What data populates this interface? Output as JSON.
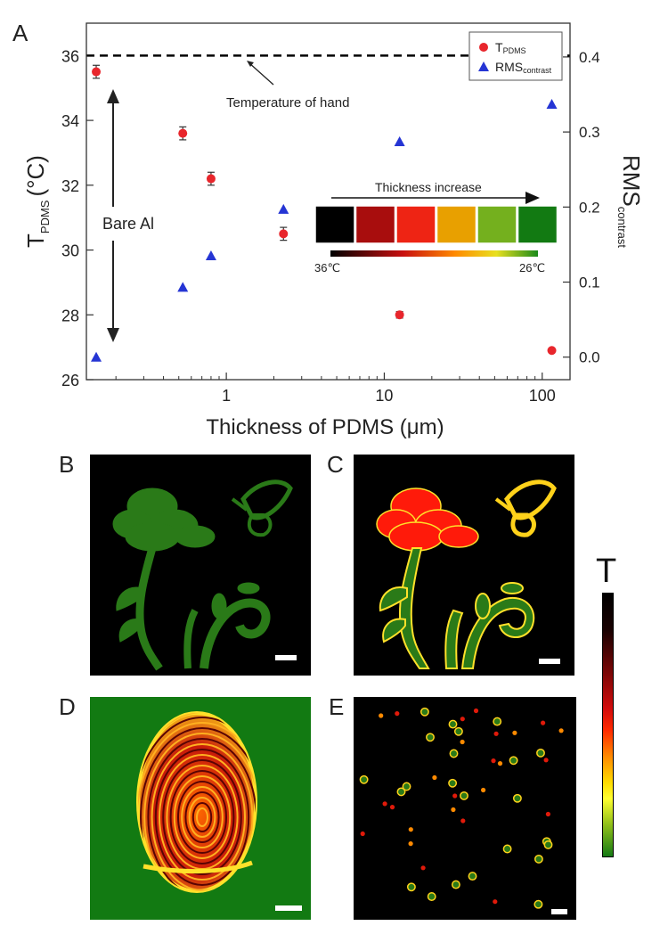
{
  "panel_labels": {
    "a": "A",
    "b": "B",
    "c": "C",
    "d": "D",
    "e": "E"
  },
  "chart_data": {
    "type": "scatter",
    "xscale": "log",
    "xlim": [
      0.13,
      150
    ],
    "ylim": [
      26,
      37
    ],
    "y2lim": [
      -0.03,
      0.445
    ],
    "xlabel": "Thickness of PDMS (μm)",
    "ylabel": {
      "main": "T",
      "sub": "PDMS",
      "unit": "(°C)"
    },
    "y2label": {
      "main": "RMS",
      "sub": "contrast"
    },
    "x_ticks": [
      {
        "value": 1,
        "label": "1"
      },
      {
        "value": 10,
        "label": "10"
      },
      {
        "value": 100,
        "label": "100"
      }
    ],
    "y_ticks": [
      {
        "value": 26,
        "label": "26"
      },
      {
        "value": 28,
        "label": "28"
      },
      {
        "value": 30,
        "label": "30"
      },
      {
        "value": 32,
        "label": "32"
      },
      {
        "value": 34,
        "label": "34"
      },
      {
        "value": 36,
        "label": "36"
      }
    ],
    "y2_ticks": [
      {
        "value": 0.0,
        "label": "0.0"
      },
      {
        "value": 0.1,
        "label": "0.1"
      },
      {
        "value": 0.2,
        "label": "0.2"
      },
      {
        "value": 0.3,
        "label": "0.3"
      },
      {
        "value": 0.4,
        "label": "0.4"
      }
    ],
    "legend": {
      "position": "top-right",
      "entries": [
        {
          "main": "T",
          "sub": "PDMS",
          "marker": "circle",
          "color": "#e8262c"
        },
        {
          "main": "RMS",
          "sub": "contrast",
          "marker": "triangle",
          "color": "#2535d4"
        }
      ]
    },
    "series": [
      {
        "axis": "left",
        "marker": "circle",
        "color": "#e8262c",
        "points": [
          {
            "x": 0.15,
            "y": 35.5,
            "err": 0.2
          },
          {
            "x": 0.53,
            "y": 33.6,
            "err": 0.2
          },
          {
            "x": 0.8,
            "y": 32.2,
            "err": 0.2
          },
          {
            "x": 2.3,
            "y": 30.5,
            "err": 0.2
          },
          {
            "x": 12.5,
            "y": 28.0,
            "err": 0.1
          },
          {
            "x": 115,
            "y": 26.9,
            "err": 0
          }
        ]
      },
      {
        "axis": "right",
        "marker": "triangle",
        "color": "#2535d4",
        "points": [
          {
            "x": 0.15,
            "y": 0.0
          },
          {
            "x": 0.53,
            "y": 0.093
          },
          {
            "x": 0.8,
            "y": 0.135
          },
          {
            "x": 2.3,
            "y": 0.197
          },
          {
            "x": 12.5,
            "y": 0.287
          },
          {
            "x": 115,
            "y": 0.337
          }
        ]
      }
    ],
    "reference_line": {
      "y": 36,
      "style": "dashed",
      "color": "#000000"
    },
    "annotations": {
      "hand": "Temperature of hand",
      "bare": "Bare Al",
      "thickness": "Thickness increase"
    },
    "swatch_colors": [
      "#000000",
      "#a80d0d",
      "#ee2414",
      "#e8a000",
      "#74b01e",
      "#127a12"
    ],
    "colorbar_labels": {
      "high": "36℃",
      "low": "26℃"
    }
  },
  "colorbar": {
    "label": "T"
  },
  "colors": {
    "panel_background": "#000000",
    "fingerprint_background": "#127a12",
    "flower_green": "#2a7a18",
    "flower_red": "#ff1a0a",
    "outline_yellow": "#ffe12a",
    "butterfly_yellow": "#ffd21a"
  }
}
